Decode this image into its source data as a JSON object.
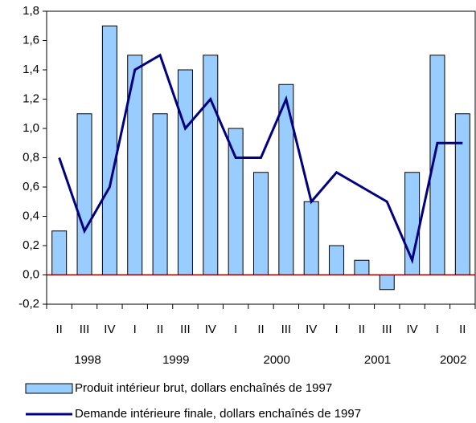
{
  "chart_data": {
    "type": "bar_line",
    "categories": [
      "II",
      "III",
      "IV",
      "I",
      "II",
      "III",
      "IV",
      "I",
      "II",
      "III",
      "IV",
      "I",
      "II",
      "III",
      "IV",
      "I",
      "II"
    ],
    "year_categories": [
      "1998",
      null,
      null,
      "1999",
      null,
      null,
      null,
      "2000",
      null,
      null,
      null,
      "2001",
      null,
      null,
      null,
      "2002",
      null
    ],
    "series": [
      {
        "name": "Produit intérieur brut, dollars enchaînés de 1997",
        "type": "bar",
        "color": "#99ccff",
        "values": [
          0.3,
          1.1,
          1.7,
          1.5,
          1.1,
          1.4,
          1.5,
          1.0,
          0.7,
          1.3,
          0.5,
          0.2,
          0.1,
          -0.1,
          0.7,
          1.5,
          1.1
        ]
      },
      {
        "name": "Demande intérieure finale, dollars enchaînés de 1997",
        "type": "line",
        "color": "#000080",
        "values": [
          0.8,
          0.3,
          0.6,
          1.4,
          1.5,
          1.0,
          1.2,
          0.8,
          0.8,
          1.2,
          0.5,
          0.7,
          0.6,
          0.5,
          0.1,
          0.9,
          0.9
        ]
      }
    ],
    "ylim": [
      -0.2,
      1.8
    ],
    "yticks": [
      {
        "value": -0.2,
        "label": "-0,2"
      },
      {
        "value": 0,
        "label": "0,0"
      },
      {
        "value": 0.2,
        "label": "0,2"
      },
      {
        "value": 0.4,
        "label": "0,4"
      },
      {
        "value": 0.6,
        "label": "0,6"
      },
      {
        "value": 0.8,
        "label": "0,8"
      },
      {
        "value": 1.0,
        "label": "1,0"
      },
      {
        "value": 1.2,
        "label": "1,2"
      },
      {
        "value": 1.4,
        "label": "1,4"
      },
      {
        "value": 1.6,
        "label": "1,6"
      },
      {
        "value": 1.8,
        "label": "1,8"
      }
    ],
    "zero_line_color": "#800000"
  }
}
